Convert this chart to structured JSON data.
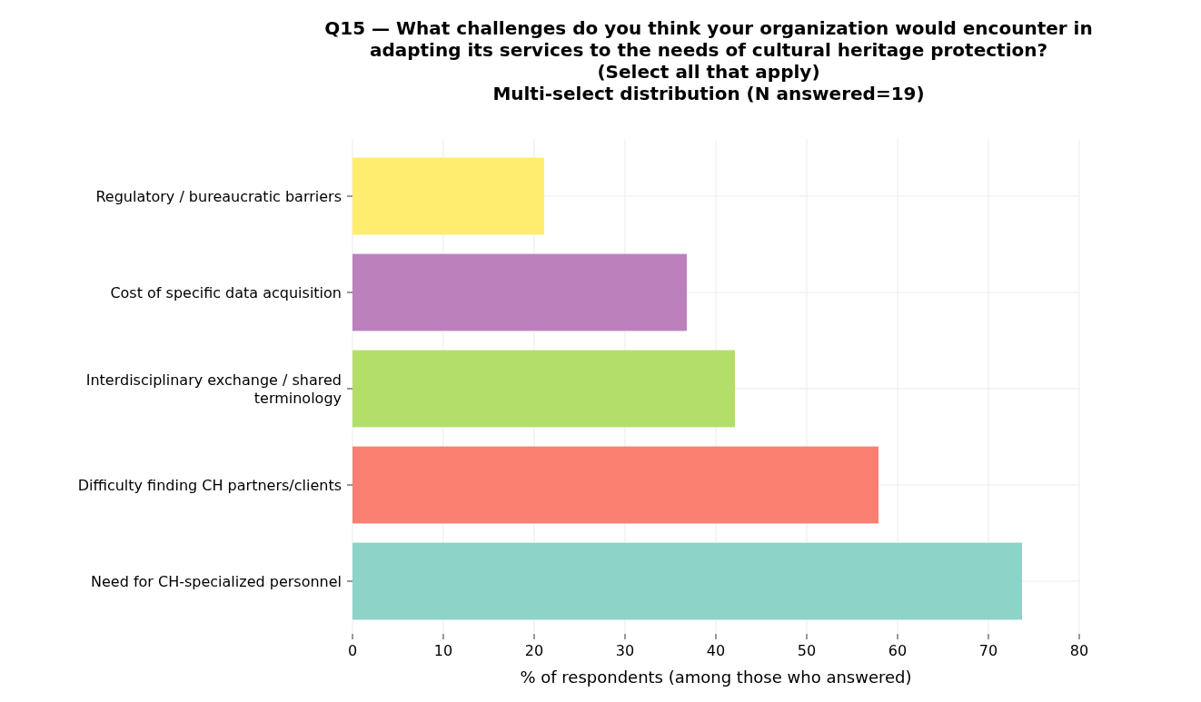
{
  "chart_data": {
    "type": "bar",
    "orientation": "horizontal",
    "title": "Q15 — What challenges do you think your organization would encounter in\nadapting its services to the needs of cultural heritage protection?\n(Select all that apply)\nMulti-select distribution (N answered=19)",
    "xlabel": "% of respondents (among those who answered)",
    "categories": [
      "Regulatory / bureaucratic barriers",
      "Cost of specific data acquisition",
      "Interdisciplinary exchange / shared terminology",
      "Difficulty finding CH partners/clients",
      "Need for CH-specialized personnel"
    ],
    "values": [
      21.1,
      36.8,
      42.1,
      57.9,
      73.7
    ],
    "colors": [
      "#ffed6f",
      "#bc80bd",
      "#b3de69",
      "#fb8072",
      "#8dd3c7"
    ],
    "xlim": [
      0,
      80
    ],
    "xticks": [
      0,
      10,
      20,
      30,
      40,
      50,
      60,
      70,
      80
    ],
    "grid": true
  }
}
